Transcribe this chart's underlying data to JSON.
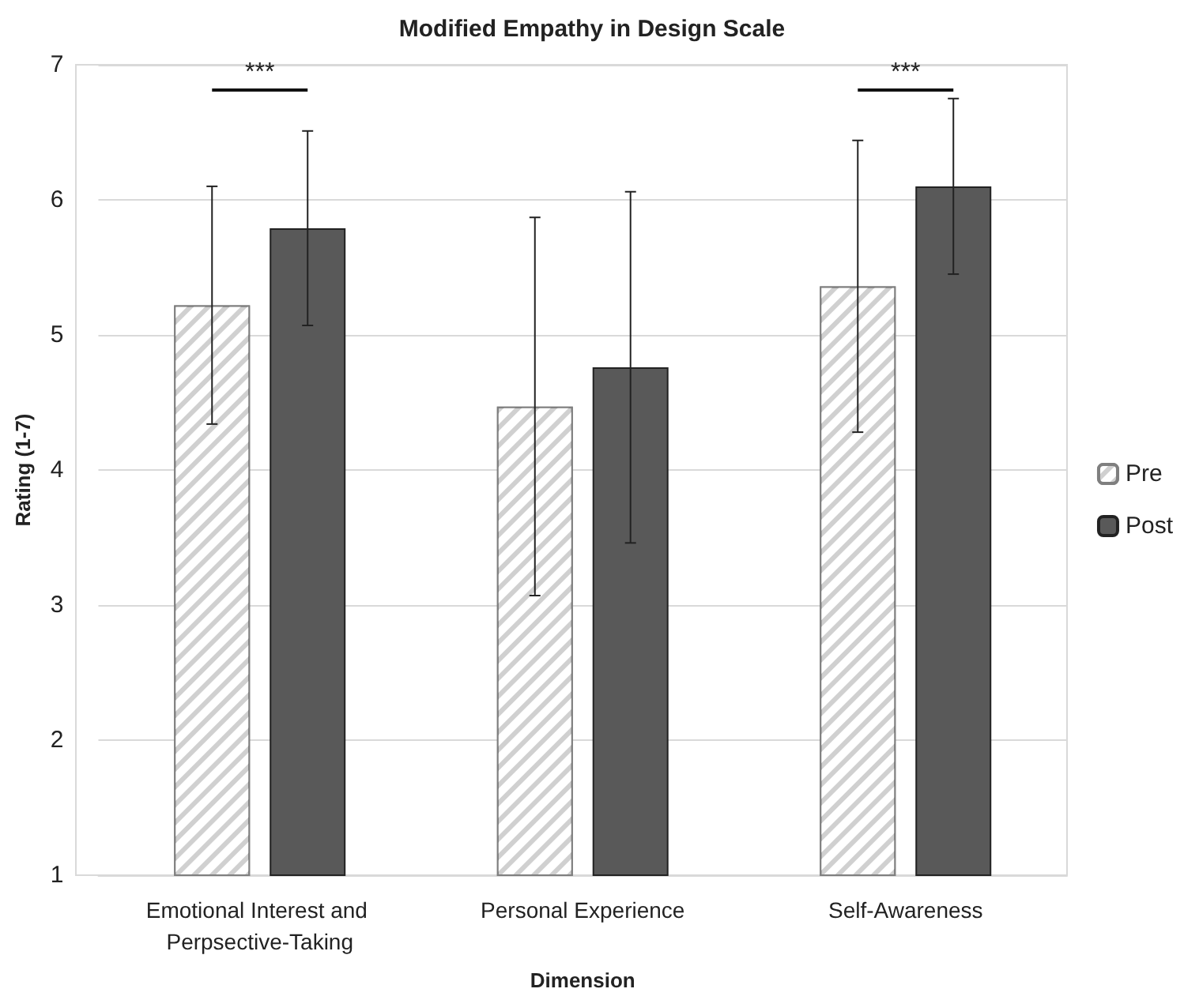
{
  "chart_data": {
    "type": "bar",
    "title": "Modified Empathy in Design Scale",
    "xlabel": "Dimension",
    "ylabel": "Rating (1-7)",
    "categories": [
      "Emotional Interest and Perpsective-Taking",
      "Personal Experience",
      "Self-Awareness"
    ],
    "series": [
      {
        "name": "Pre",
        "color": "#d0d0d0",
        "values": [
          5.22,
          4.47,
          5.36
        ],
        "errors": [
          0.88,
          1.4,
          1.08
        ]
      },
      {
        "name": "Post",
        "color": "#595959",
        "values": [
          5.79,
          4.76,
          6.1
        ],
        "errors": [
          0.72,
          1.3,
          0.65
        ]
      }
    ],
    "ylim": [
      1,
      7
    ],
    "yticks": [
      1,
      2,
      3,
      4,
      5,
      6,
      7
    ],
    "grid": "y",
    "legend": "right",
    "annotations": [
      "***",
      "***"
    ]
  }
}
